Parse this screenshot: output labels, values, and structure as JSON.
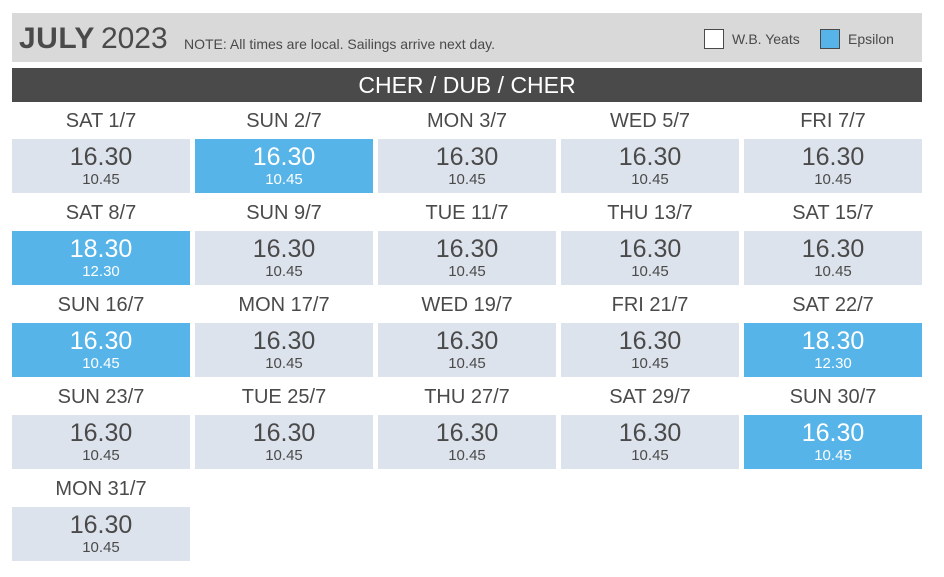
{
  "header": {
    "month": "JULY",
    "year": "2023",
    "note": "NOTE: All times are local. Sailings arrive next day."
  },
  "legend": [
    {
      "label": "W.B. Yeats",
      "color": "#ffffff"
    },
    {
      "label": "Epsilon",
      "color": "#56b4e9"
    }
  ],
  "route": "CHER / DUB / CHER",
  "sailings": [
    {
      "day": "SAT 1/7",
      "dep": "16.30",
      "arr": "10.45",
      "ship": "W.B. Yeats"
    },
    {
      "day": "SUN 2/7",
      "dep": "16.30",
      "arr": "10.45",
      "ship": "Epsilon"
    },
    {
      "day": "MON 3/7",
      "dep": "16.30",
      "arr": "10.45",
      "ship": "W.B. Yeats"
    },
    {
      "day": "WED 5/7",
      "dep": "16.30",
      "arr": "10.45",
      "ship": "W.B. Yeats"
    },
    {
      "day": "FRI 7/7",
      "dep": "16.30",
      "arr": "10.45",
      "ship": "W.B. Yeats"
    },
    {
      "day": "SAT 8/7",
      "dep": "18.30",
      "arr": "12.30",
      "ship": "Epsilon"
    },
    {
      "day": "SUN 9/7",
      "dep": "16.30",
      "arr": "10.45",
      "ship": "W.B. Yeats"
    },
    {
      "day": "TUE 11/7",
      "dep": "16.30",
      "arr": "10.45",
      "ship": "W.B. Yeats"
    },
    {
      "day": "THU 13/7",
      "dep": "16.30",
      "arr": "10.45",
      "ship": "W.B. Yeats"
    },
    {
      "day": "SAT 15/7",
      "dep": "16.30",
      "arr": "10.45",
      "ship": "W.B. Yeats"
    },
    {
      "day": "SUN 16/7",
      "dep": "16.30",
      "arr": "10.45",
      "ship": "Epsilon"
    },
    {
      "day": "MON 17/7",
      "dep": "16.30",
      "arr": "10.45",
      "ship": "W.B. Yeats"
    },
    {
      "day": "WED 19/7",
      "dep": "16.30",
      "arr": "10.45",
      "ship": "W.B. Yeats"
    },
    {
      "day": "FRI 21/7",
      "dep": "16.30",
      "arr": "10.45",
      "ship": "W.B. Yeats"
    },
    {
      "day": "SAT 22/7",
      "dep": "18.30",
      "arr": "12.30",
      "ship": "Epsilon"
    },
    {
      "day": "SUN 23/7",
      "dep": "16.30",
      "arr": "10.45",
      "ship": "W.B. Yeats"
    },
    {
      "day": "TUE 25/7",
      "dep": "16.30",
      "arr": "10.45",
      "ship": "W.B. Yeats"
    },
    {
      "day": "THU 27/7",
      "dep": "16.30",
      "arr": "10.45",
      "ship": "W.B. Yeats"
    },
    {
      "day": "SAT 29/7",
      "dep": "16.30",
      "arr": "10.45",
      "ship": "W.B. Yeats"
    },
    {
      "day": "SUN 30/7",
      "dep": "16.30",
      "arr": "10.45",
      "ship": "Epsilon"
    },
    {
      "day": "MON 31/7",
      "dep": "16.30",
      "arr": "10.45",
      "ship": "W.B. Yeats"
    }
  ]
}
